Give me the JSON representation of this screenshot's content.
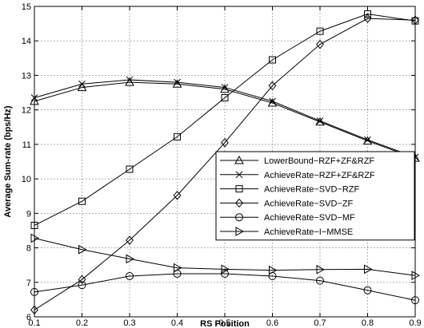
{
  "chart_data": {
    "type": "line",
    "title": "",
    "xlabel": "RS Position",
    "ylabel": "Average Sum-rate (bps/Hz)",
    "xlim": [
      0.1,
      0.9
    ],
    "ylim": [
      6,
      15
    ],
    "xticks": [
      "0.1",
      "0.2",
      "0.3",
      "0.4",
      "0.5",
      "0.6",
      "0.7",
      "0.8",
      "0.9"
    ],
    "yticks": [
      "6",
      "7",
      "8",
      "9",
      "10",
      "11",
      "12",
      "13",
      "14",
      "15"
    ],
    "grid": true,
    "legend_position": "center-right",
    "x": [
      0.1,
      0.2,
      0.3,
      0.4,
      0.5,
      0.6,
      0.7,
      0.8,
      0.9
    ],
    "series": [
      {
        "name": "LowerBound−RZF+ZF&RZF",
        "marker": "triangle-up",
        "values": [
          12.25,
          12.65,
          12.8,
          12.75,
          12.6,
          12.2,
          11.65,
          11.1,
          10.6
        ]
      },
      {
        "name": "AchieveRate−RZF+ZF&RZF",
        "marker": "x",
        "values": [
          12.35,
          12.75,
          12.87,
          12.8,
          12.65,
          12.25,
          11.68,
          11.13,
          10.63
        ]
      },
      {
        "name": "AchieveRate−SVD−RZF",
        "marker": "square",
        "values": [
          8.65,
          9.35,
          10.28,
          11.22,
          12.35,
          13.45,
          14.28,
          14.78,
          14.58
        ]
      },
      {
        "name": "AchieveRate−SVD−ZF",
        "marker": "diamond",
        "values": [
          6.2,
          7.08,
          8.22,
          9.52,
          11.05,
          12.7,
          13.9,
          14.65,
          14.6
        ]
      },
      {
        "name": "AchieveRate−SVD−MF",
        "marker": "circle",
        "values": [
          6.72,
          6.92,
          7.18,
          7.25,
          7.25,
          7.18,
          7.05,
          6.77,
          6.48
        ]
      },
      {
        "name": "AchieveRate−I−MMSE",
        "marker": "triangle-right",
        "values": [
          8.28,
          7.95,
          7.68,
          7.42,
          7.38,
          7.35,
          7.37,
          7.38,
          7.2
        ]
      }
    ]
  }
}
